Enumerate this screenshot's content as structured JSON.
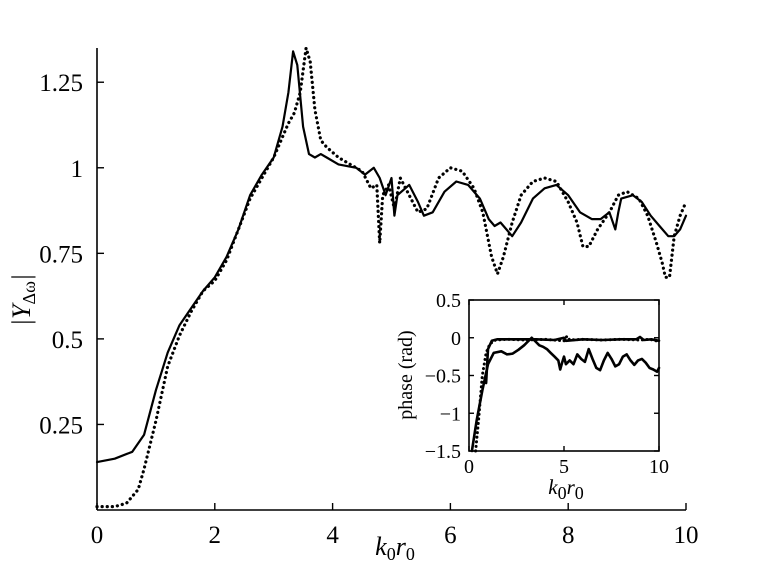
{
  "chart_data": [
    {
      "type": "line",
      "xlabel": "k0r0",
      "ylabel": "|YΔω|",
      "xlim": [
        0,
        10
      ],
      "ylim": [
        0,
        1.35
      ],
      "xticks": [
        "0",
        "2",
        "4",
        "6",
        "8",
        "10"
      ],
      "yticks": [
        "0.25",
        "0.5",
        "0.75",
        "1",
        "1.25"
      ],
      "grid": false,
      "series": [
        {
          "style": "solid",
          "points": [
            [
              0,
              0.14
            ],
            [
              0.3,
              0.15
            ],
            [
              0.6,
              0.17
            ],
            [
              0.8,
              0.22
            ],
            [
              1.0,
              0.35
            ],
            [
              1.2,
              0.46
            ],
            [
              1.4,
              0.54
            ],
            [
              1.6,
              0.59
            ],
            [
              1.8,
              0.64
            ],
            [
              2.0,
              0.68
            ],
            [
              2.2,
              0.74
            ],
            [
              2.4,
              0.82
            ],
            [
              2.6,
              0.92
            ],
            [
              2.8,
              0.98
            ],
            [
              3.0,
              1.03
            ],
            [
              3.15,
              1.12
            ],
            [
              3.25,
              1.22
            ],
            [
              3.33,
              1.34
            ],
            [
              3.4,
              1.3
            ],
            [
              3.5,
              1.12
            ],
            [
              3.6,
              1.04
            ],
            [
              3.7,
              1.03
            ],
            [
              3.8,
              1.04
            ],
            [
              3.9,
              1.03
            ],
            [
              4.1,
              1.01
            ],
            [
              4.4,
              1.0
            ],
            [
              4.55,
              0.98
            ],
            [
              4.7,
              1.0
            ],
            [
              4.8,
              0.97
            ],
            [
              4.9,
              0.92
            ],
            [
              5.0,
              0.97
            ],
            [
              5.05,
              0.86
            ],
            [
              5.1,
              0.92
            ],
            [
              5.3,
              0.95
            ],
            [
              5.45,
              0.9
            ],
            [
              5.55,
              0.86
            ],
            [
              5.7,
              0.87
            ],
            [
              5.9,
              0.93
            ],
            [
              6.1,
              0.96
            ],
            [
              6.3,
              0.95
            ],
            [
              6.5,
              0.91
            ],
            [
              6.65,
              0.85
            ],
            [
              6.75,
              0.83
            ],
            [
              6.85,
              0.84
            ],
            [
              6.95,
              0.82
            ],
            [
              7.05,
              0.8
            ],
            [
              7.2,
              0.84
            ],
            [
              7.4,
              0.91
            ],
            [
              7.6,
              0.94
            ],
            [
              7.8,
              0.95
            ],
            [
              8.0,
              0.92
            ],
            [
              8.2,
              0.87
            ],
            [
              8.4,
              0.85
            ],
            [
              8.55,
              0.85
            ],
            [
              8.7,
              0.87
            ],
            [
              8.8,
              0.82
            ],
            [
              8.85,
              0.87
            ],
            [
              8.9,
              0.91
            ],
            [
              9.1,
              0.92
            ],
            [
              9.25,
              0.9
            ],
            [
              9.4,
              0.86
            ],
            [
              9.55,
              0.83
            ],
            [
              9.7,
              0.8
            ],
            [
              9.8,
              0.8
            ],
            [
              9.9,
              0.82
            ],
            [
              10.0,
              0.86
            ]
          ]
        },
        {
          "style": "dotted",
          "points": [
            [
              0,
              0.01
            ],
            [
              0.3,
              0.01
            ],
            [
              0.5,
              0.02
            ],
            [
              0.7,
              0.06
            ],
            [
              0.8,
              0.12
            ],
            [
              1.0,
              0.26
            ],
            [
              1.2,
              0.42
            ],
            [
              1.4,
              0.51
            ],
            [
              1.6,
              0.58
            ],
            [
              1.8,
              0.64
            ],
            [
              2.0,
              0.67
            ],
            [
              2.2,
              0.73
            ],
            [
              2.4,
              0.82
            ],
            [
              2.6,
              0.91
            ],
            [
              2.8,
              0.97
            ],
            [
              3.0,
              1.03
            ],
            [
              3.15,
              1.09
            ],
            [
              3.25,
              1.13
            ],
            [
              3.35,
              1.16
            ],
            [
              3.45,
              1.22
            ],
            [
              3.55,
              1.35
            ],
            [
              3.62,
              1.31
            ],
            [
              3.7,
              1.17
            ],
            [
              3.8,
              1.08
            ],
            [
              3.9,
              1.06
            ],
            [
              4.1,
              1.03
            ],
            [
              4.3,
              1.01
            ],
            [
              4.5,
              0.99
            ],
            [
              4.65,
              0.94
            ],
            [
              4.75,
              0.95
            ],
            [
              4.8,
              0.78
            ],
            [
              4.85,
              0.92
            ],
            [
              4.95,
              0.95
            ],
            [
              5.05,
              0.88
            ],
            [
              5.15,
              0.97
            ],
            [
              5.3,
              0.92
            ],
            [
              5.45,
              0.87
            ],
            [
              5.6,
              0.88
            ],
            [
              5.8,
              0.97
            ],
            [
              6.0,
              1.0
            ],
            [
              6.2,
              0.99
            ],
            [
              6.4,
              0.94
            ],
            [
              6.55,
              0.87
            ],
            [
              6.7,
              0.74
            ],
            [
              6.8,
              0.69
            ],
            [
              6.9,
              0.74
            ],
            [
              7.05,
              0.84
            ],
            [
              7.2,
              0.92
            ],
            [
              7.4,
              0.96
            ],
            [
              7.6,
              0.97
            ],
            [
              7.8,
              0.96
            ],
            [
              8.0,
              0.9
            ],
            [
              8.15,
              0.84
            ],
            [
              8.25,
              0.77
            ],
            [
              8.35,
              0.77
            ],
            [
              8.5,
              0.82
            ],
            [
              8.7,
              0.87
            ],
            [
              8.85,
              0.92
            ],
            [
              9.0,
              0.93
            ],
            [
              9.2,
              0.91
            ],
            [
              9.35,
              0.86
            ],
            [
              9.5,
              0.78
            ],
            [
              9.6,
              0.72
            ],
            [
              9.65,
              0.68
            ],
            [
              9.72,
              0.68
            ],
            [
              9.8,
              0.8
            ],
            [
              9.9,
              0.86
            ],
            [
              10.0,
              0.9
            ]
          ]
        }
      ]
    },
    {
      "type": "line",
      "xlabel": "k0r0",
      "ylabel": "phase (rad)",
      "xlim": [
        0,
        10
      ],
      "ylim": [
        -1.5,
        0.5
      ],
      "xticks": [
        "0",
        "5",
        "10"
      ],
      "yticks": [
        "0.5",
        "0",
        "-0.5",
        "-1",
        "-1.5"
      ],
      "grid": false,
      "series": [
        {
          "style": "solid-upper",
          "points": [
            [
              0.9,
              -0.6
            ],
            [
              1.0,
              -0.15
            ],
            [
              1.2,
              -0.04
            ],
            [
              1.5,
              -0.02
            ],
            [
              2.5,
              -0.02
            ],
            [
              3.5,
              -0.02
            ],
            [
              4.5,
              -0.03
            ],
            [
              5.0,
              0.0
            ],
            [
              5.1,
              -0.04
            ],
            [
              6.0,
              -0.02
            ],
            [
              7.0,
              -0.03
            ],
            [
              8.0,
              -0.02
            ],
            [
              8.8,
              -0.02
            ],
            [
              9.0,
              0.01
            ],
            [
              9.2,
              -0.03
            ],
            [
              9.6,
              -0.02
            ],
            [
              10.0,
              -0.04
            ]
          ]
        },
        {
          "style": "solid-lower",
          "points": [
            [
              0.15,
              -1.5
            ],
            [
              0.4,
              -1.1
            ],
            [
              0.7,
              -0.7
            ],
            [
              1.0,
              -0.35
            ],
            [
              1.3,
              -0.2
            ],
            [
              1.7,
              -0.18
            ],
            [
              2.0,
              -0.22
            ],
            [
              2.3,
              -0.21
            ],
            [
              2.6,
              -0.16
            ],
            [
              2.9,
              -0.1
            ],
            [
              3.1,
              -0.05
            ],
            [
              3.3,
              0.0
            ],
            [
              3.5,
              -0.05
            ],
            [
              3.7,
              -0.1
            ],
            [
              3.9,
              -0.12
            ],
            [
              4.1,
              -0.15
            ],
            [
              4.3,
              -0.2
            ],
            [
              4.5,
              -0.25
            ],
            [
              4.7,
              -0.3
            ],
            [
              4.8,
              -0.42
            ],
            [
              4.9,
              -0.33
            ],
            [
              5.0,
              -0.25
            ],
            [
              5.1,
              -0.35
            ],
            [
              5.3,
              -0.3
            ],
            [
              5.5,
              -0.35
            ],
            [
              5.7,
              -0.22
            ],
            [
              5.9,
              -0.28
            ],
            [
              6.1,
              -0.32
            ],
            [
              6.3,
              -0.15
            ],
            [
              6.5,
              -0.28
            ],
            [
              6.7,
              -0.4
            ],
            [
              6.9,
              -0.43
            ],
            [
              7.1,
              -0.3
            ],
            [
              7.3,
              -0.2
            ],
            [
              7.5,
              -0.28
            ],
            [
              7.7,
              -0.38
            ],
            [
              7.9,
              -0.35
            ],
            [
              8.1,
              -0.25
            ],
            [
              8.3,
              -0.22
            ],
            [
              8.5,
              -0.3
            ],
            [
              8.7,
              -0.36
            ],
            [
              8.9,
              -0.3
            ],
            [
              9.1,
              -0.28
            ],
            [
              9.3,
              -0.33
            ],
            [
              9.5,
              -0.4
            ],
            [
              9.7,
              -0.42
            ],
            [
              9.9,
              -0.45
            ],
            [
              10.0,
              -0.4
            ]
          ]
        },
        {
          "style": "dotted",
          "points": [
            [
              0.35,
              -1.5
            ],
            [
              0.5,
              -1.1
            ],
            [
              0.7,
              -0.5
            ],
            [
              0.9,
              -0.2
            ],
            [
              1.1,
              -0.08
            ],
            [
              1.4,
              -0.03
            ],
            [
              2.0,
              -0.02
            ],
            [
              3.0,
              -0.03
            ],
            [
              4.0,
              -0.02
            ],
            [
              5.0,
              -0.04
            ],
            [
              5.15,
              0.02
            ],
            [
              5.3,
              -0.03
            ],
            [
              6.0,
              -0.02
            ],
            [
              7.0,
              -0.03
            ],
            [
              8.0,
              -0.02
            ],
            [
              9.0,
              -0.03
            ],
            [
              9.5,
              -0.02
            ],
            [
              10.0,
              -0.05
            ]
          ]
        }
      ]
    }
  ]
}
